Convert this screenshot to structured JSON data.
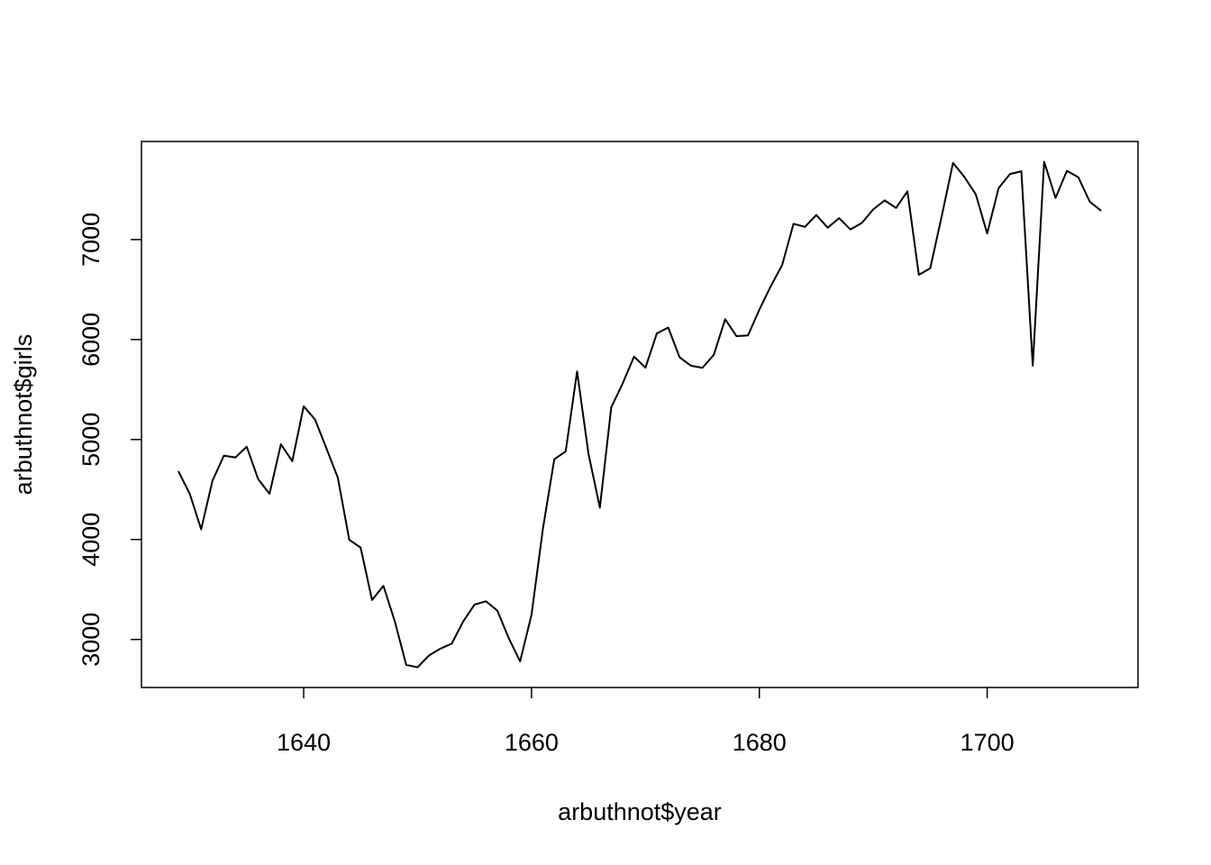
{
  "chart_data": {
    "type": "line",
    "x_label": "arbuthnot$year",
    "y_label": "arbuthnot$girls",
    "x": [
      1629,
      1630,
      1631,
      1632,
      1633,
      1634,
      1635,
      1636,
      1637,
      1638,
      1639,
      1640,
      1641,
      1642,
      1643,
      1644,
      1645,
      1646,
      1647,
      1648,
      1649,
      1650,
      1651,
      1652,
      1653,
      1654,
      1655,
      1656,
      1657,
      1658,
      1659,
      1660,
      1661,
      1662,
      1663,
      1664,
      1665,
      1666,
      1667,
      1668,
      1669,
      1670,
      1671,
      1672,
      1673,
      1674,
      1675,
      1676,
      1677,
      1678,
      1679,
      1680,
      1681,
      1682,
      1683,
      1684,
      1685,
      1686,
      1687,
      1688,
      1689,
      1690,
      1691,
      1692,
      1693,
      1694,
      1695,
      1696,
      1697,
      1698,
      1699,
      1700,
      1701,
      1702,
      1703,
      1704,
      1705,
      1706,
      1707,
      1708,
      1709,
      1710
    ],
    "values": [
      4683,
      4457,
      4102,
      4590,
      4839,
      4820,
      4928,
      4605,
      4457,
      4952,
      4784,
      5332,
      5200,
      4910,
      4617,
      3997,
      3919,
      3395,
      3536,
      3181,
      2746,
      2722,
      2840,
      2908,
      2959,
      3179,
      3349,
      3382,
      3289,
      3013,
      2781,
      3247,
      4107,
      4803,
      4881,
      5681,
      4858,
      4319,
      5322,
      5560,
      5829,
      5719,
      6061,
      6120,
      5822,
      5738,
      5717,
      5847,
      6203,
      6033,
      6041,
      6299,
      6533,
      6744,
      7158,
      7127,
      7246,
      7119,
      7214,
      7101,
      7167,
      7302,
      7392,
      7316,
      7483,
      6647,
      6713,
      7229,
      7767,
      7626,
      7452,
      7061,
      7514,
      7656,
      7683,
      5738,
      7779,
      7417,
      7687,
      7623,
      7380,
      7288
    ],
    "color": "#000000",
    "xlim": [
      1625.76,
      1713.24
    ],
    "xticks": [
      1640,
      1660,
      1680,
      1700
    ],
    "ylim": [
      2519.72,
      7981.28
    ],
    "yticks": [
      3000,
      4000,
      5000,
      6000,
      7000
    ]
  }
}
